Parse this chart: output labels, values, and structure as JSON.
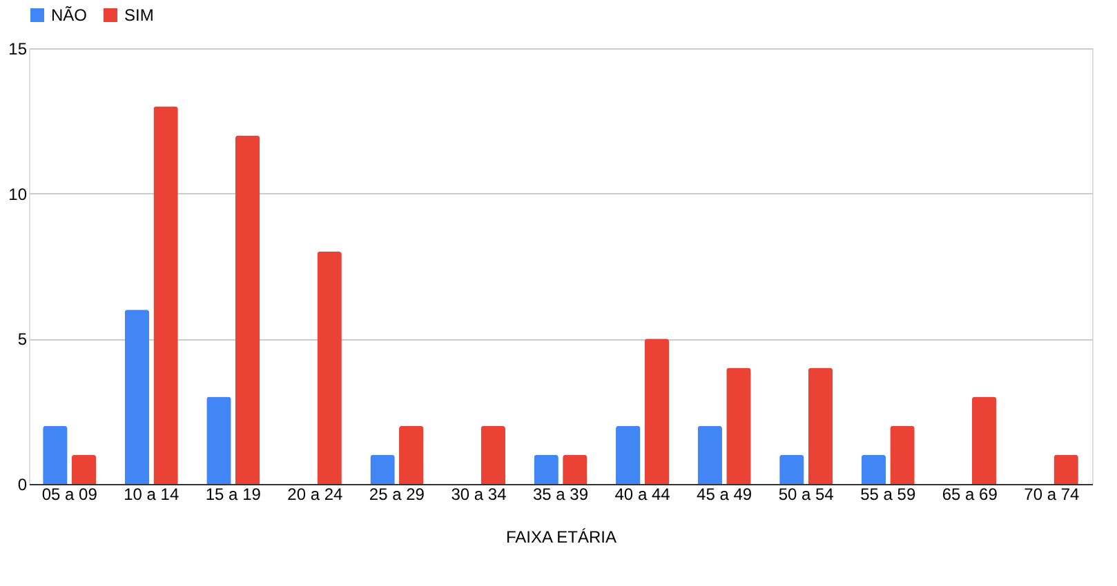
{
  "chart_data": {
    "type": "bar",
    "xlabel": "FAIXA ETÁRIA",
    "categories": [
      "05 a 09",
      "10 a 14",
      "15 a 19",
      "20 a 24",
      "25 a 29",
      "30 a 34",
      "35 a 39",
      "40 a 44",
      "45 a 49",
      "50 a 54",
      "55 a 59",
      "65 a 69",
      "70 a 74"
    ],
    "series": [
      {
        "name": "NÃO",
        "color": "#4285f4",
        "values": [
          2,
          6,
          3,
          0,
          1,
          0,
          1,
          2,
          2,
          1,
          1,
          0,
          0
        ]
      },
      {
        "name": "SIM",
        "color": "#ea4335",
        "values": [
          1,
          13,
          12,
          8,
          2,
          2,
          1,
          5,
          4,
          4,
          2,
          3,
          1
        ]
      }
    ],
    "ylim": [
      0,
      15
    ],
    "yticks": [
      0,
      5,
      10,
      15
    ],
    "grid": "y",
    "legend": "top"
  }
}
